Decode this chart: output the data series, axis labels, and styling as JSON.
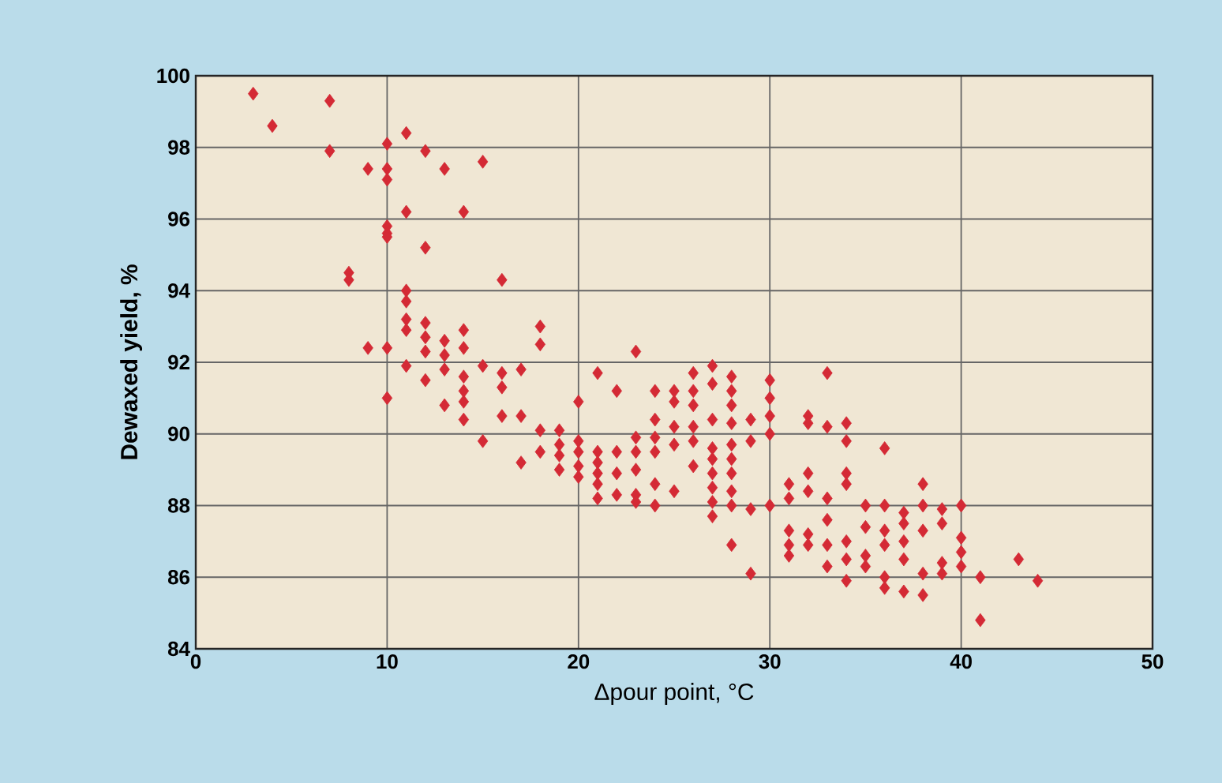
{
  "chart_data": {
    "type": "scatter",
    "xlabel": "Δpour point, °C",
    "ylabel": "Dewaxed yield, %",
    "color": "#d42a35",
    "marker": "diamond",
    "grid": true,
    "xlim": [
      0,
      50
    ],
    "xticks": [
      0,
      10,
      20,
      30,
      40,
      50
    ],
    "ylim": [
      84,
      100
    ],
    "yticks": [
      84,
      86,
      88,
      90,
      92,
      94,
      96,
      98,
      100
    ],
    "x": [
      3,
      4,
      7,
      7,
      8,
      8,
      9,
      9,
      10,
      10,
      10,
      10,
      10,
      10,
      10,
      10,
      11,
      11,
      11,
      11,
      11,
      11,
      11,
      12,
      12,
      12,
      12,
      12,
      12,
      13,
      13,
      13,
      13,
      13,
      14,
      14,
      14,
      14,
      14,
      14,
      14,
      15,
      15,
      15,
      16,
      16,
      16,
      16,
      17,
      17,
      17,
      18,
      18,
      18,
      18,
      19,
      19,
      19,
      19,
      20,
      20,
      20,
      20,
      20,
      21,
      21,
      21,
      21,
      21,
      21,
      22,
      22,
      22,
      22,
      23,
      23,
      23,
      23,
      23,
      23,
      24,
      24,
      24,
      24,
      24,
      24,
      25,
      25,
      25,
      25,
      25,
      26,
      26,
      26,
      26,
      26,
      26,
      27,
      27,
      27,
      27,
      27,
      27,
      27,
      27,
      27,
      28,
      28,
      28,
      28,
      28,
      28,
      28,
      28,
      28,
      28,
      29,
      29,
      29,
      29,
      30,
      30,
      30,
      30,
      30,
      31,
      31,
      31,
      31,
      31,
      32,
      32,
      32,
      32,
      32,
      32,
      33,
      33,
      33,
      33,
      33,
      33,
      34,
      34,
      34,
      34,
      34,
      34,
      34,
      35,
      35,
      35,
      35,
      36,
      36,
      36,
      36,
      36,
      36,
      37,
      37,
      37,
      37,
      37,
      38,
      38,
      38,
      38,
      38,
      39,
      39,
      39,
      39,
      40,
      40,
      40,
      40,
      41,
      41,
      43,
      44
    ],
    "values": [
      99.5,
      98.6,
      99.3,
      97.9,
      94.5,
      94.3,
      97.4,
      92.4,
      98.1,
      97.4,
      97.1,
      95.8,
      95.6,
      95.5,
      92.4,
      91.0,
      98.4,
      96.2,
      94.0,
      93.7,
      93.2,
      92.9,
      91.9,
      97.9,
      95.2,
      93.1,
      92.7,
      92.3,
      91.5,
      97.4,
      92.6,
      92.2,
      91.8,
      90.8,
      96.2,
      92.9,
      92.4,
      91.6,
      91.2,
      90.9,
      90.4,
      97.6,
      91.9,
      89.8,
      94.3,
      91.7,
      91.3,
      90.5,
      91.8,
      90.5,
      89.2,
      93.0,
      92.5,
      90.1,
      89.5,
      90.1,
      89.7,
      89.4,
      89.0,
      90.9,
      89.8,
      89.5,
      89.1,
      88.8,
      91.7,
      89.5,
      89.2,
      88.9,
      88.6,
      88.2,
      91.2,
      89.5,
      88.9,
      88.3,
      92.3,
      89.9,
      89.5,
      89.0,
      88.3,
      88.1,
      91.2,
      90.4,
      89.9,
      89.5,
      88.6,
      88.0,
      91.2,
      90.9,
      90.2,
      89.7,
      88.4,
      91.7,
      91.2,
      90.8,
      90.2,
      89.8,
      89.1,
      91.9,
      91.4,
      90.4,
      89.6,
      89.3,
      88.9,
      88.5,
      88.1,
      87.7,
      91.6,
      91.2,
      90.8,
      90.3,
      89.7,
      89.3,
      88.9,
      88.4,
      88.0,
      86.9,
      90.4,
      89.8,
      87.9,
      86.1,
      91.5,
      91.0,
      90.5,
      90.0,
      88.0,
      88.6,
      88.2,
      87.3,
      86.9,
      86.6,
      90.5,
      90.3,
      88.9,
      88.4,
      87.2,
      86.9,
      91.7,
      90.2,
      88.2,
      87.6,
      86.9,
      86.3,
      90.3,
      89.8,
      88.9,
      88.6,
      87.0,
      86.5,
      85.9,
      88.0,
      87.4,
      86.6,
      86.3,
      89.6,
      88.0,
      87.3,
      86.9,
      86.0,
      85.7,
      87.8,
      87.5,
      87.0,
      86.5,
      85.6,
      88.6,
      88.0,
      87.3,
      86.1,
      85.5,
      87.9,
      87.5,
      86.4,
      86.1,
      88.0,
      87.1,
      86.7,
      86.3,
      86.0,
      84.8,
      86.5,
      85.9
    ]
  }
}
